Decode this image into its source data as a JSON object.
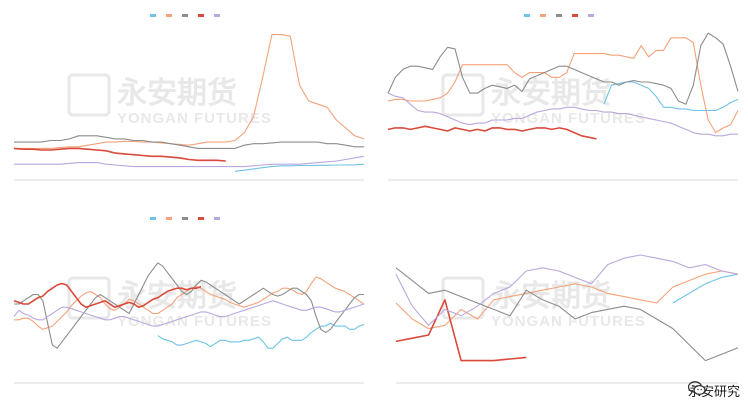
{
  "watermark": {
    "cn": "永安期货",
    "en": "YONGAN FUTURES"
  },
  "brand": {
    "label": "永安研究",
    "icon": "wechat-icon"
  },
  "colors": {
    "blue": "#6ec3e6",
    "orange": "#f5a27a",
    "grey": "#8c8c8c",
    "red": "#d94a3a",
    "purple": "#b9a8dd"
  },
  "chart_data": [
    {
      "type": "line",
      "title": "",
      "ylim": [
        0,
        10
      ],
      "legend": "top-center",
      "grid": false,
      "series": [
        {
          "color": "blue",
          "values": [
            null,
            null,
            null,
            null,
            null,
            null,
            null,
            null,
            null,
            null,
            null,
            null,
            null,
            null,
            null,
            null,
            null,
            null,
            null,
            null,
            null,
            null,
            null,
            null,
            0.55,
            0.62,
            0.7,
            0.78,
            0.85,
            0.9,
            0.9,
            0.92,
            0.92,
            0.93,
            0.93,
            0.95,
            0.95,
            0.96,
            1.0
          ]
        },
        {
          "color": "orange",
          "values": [
            2.0,
            2.0,
            2.0,
            2.0,
            2.0,
            2.05,
            2.1,
            2.1,
            2.2,
            2.3,
            2.4,
            2.4,
            2.45,
            2.45,
            2.4,
            2.4,
            2.35,
            2.3,
            2.25,
            2.2,
            2.3,
            2.4,
            2.4,
            2.4,
            2.5,
            3.0,
            4.0,
            6.5,
            9.2,
            9.2,
            9.1,
            6.0,
            5.0,
            4.8,
            4.6,
            3.8,
            3.3,
            2.8,
            2.6
          ]
        },
        {
          "color": "grey",
          "values": [
            2.4,
            2.4,
            2.4,
            2.4,
            2.5,
            2.5,
            2.6,
            2.8,
            2.8,
            2.8,
            2.7,
            2.6,
            2.6,
            2.5,
            2.5,
            2.4,
            2.4,
            2.3,
            2.2,
            2.1,
            2.0,
            2.0,
            2.0,
            2.0,
            2.0,
            2.2,
            2.3,
            2.3,
            2.35,
            2.4,
            2.4,
            2.4,
            2.4,
            2.4,
            2.3,
            2.3,
            2.2,
            2.1,
            2.1
          ]
        },
        {
          "color": "red",
          "values": [
            2.0,
            1.95,
            1.95,
            1.9,
            1.9,
            1.95,
            2.0,
            2.0,
            1.95,
            1.9,
            1.85,
            1.7,
            1.65,
            1.6,
            1.55,
            1.5,
            1.5,
            1.45,
            1.4,
            1.3,
            1.25,
            1.25,
            1.25,
            1.2,
            null,
            null,
            null,
            null,
            null,
            null,
            null,
            null,
            null,
            null,
            null,
            null,
            null,
            null,
            null
          ]
        },
        {
          "color": "purple",
          "values": [
            1.0,
            1.0,
            1.0,
            1.0,
            1.0,
            1.0,
            1.05,
            1.1,
            1.1,
            1.1,
            1.0,
            0.95,
            0.9,
            0.85,
            0.85,
            0.85,
            0.85,
            0.85,
            0.85,
            0.85,
            0.85,
            0.85,
            0.85,
            0.85,
            0.85,
            0.85,
            0.9,
            0.95,
            1.0,
            1.0,
            1.0,
            1.0,
            1.05,
            1.1,
            1.15,
            1.2,
            1.3,
            1.4,
            1.5
          ]
        }
      ]
    },
    {
      "type": "line",
      "title": "",
      "ylim": [
        0,
        10
      ],
      "legend": "top-center",
      "grid": false,
      "series": [
        {
          "color": "blue",
          "values": [
            null,
            null,
            null,
            null,
            null,
            null,
            null,
            null,
            null,
            null,
            null,
            null,
            null,
            null,
            null,
            null,
            null,
            null,
            null,
            null,
            null,
            null,
            null,
            null,
            null,
            null,
            null,
            null,
            null,
            4.8,
            6.0,
            6.1,
            6.2,
            6.2,
            6.0,
            5.8,
            5.3,
            4.6,
            4.6,
            4.5,
            4.5,
            4.4,
            4.4,
            4.4,
            4.4,
            4.6,
            4.9,
            5.1
          ]
        },
        {
          "color": "orange",
          "values": [
            5.0,
            5.1,
            5.1,
            5.0,
            5.0,
            5.0,
            5.1,
            5.2,
            5.5,
            6.2,
            7.3,
            7.3,
            7.3,
            7.3,
            7.3,
            7.3,
            7.3,
            6.8,
            6.5,
            6.8,
            6.8,
            6.8,
            6.5,
            6.5,
            6.8,
            8.0,
            8.0,
            8.0,
            8.0,
            8.0,
            7.9,
            7.9,
            7.8,
            7.7,
            8.5,
            7.8,
            8.2,
            8.2,
            9.0,
            9.0,
            9.0,
            8.7,
            6.0,
            3.8,
            3.0,
            3.3,
            3.5,
            4.4
          ]
        },
        {
          "color": "grey",
          "values": [
            5.5,
            6.5,
            7.0,
            7.2,
            7.2,
            7.1,
            7.0,
            7.8,
            8.4,
            8.3,
            6.5,
            5.5,
            5.5,
            5.8,
            6.0,
            5.9,
            5.8,
            6.0,
            5.6,
            6.4,
            6.6,
            6.8,
            7.0,
            7.2,
            7.2,
            7.0,
            6.8,
            6.6,
            6.4,
            6.2,
            6.2,
            6.0,
            6.2,
            6.3,
            6.2,
            6.2,
            6.1,
            6.0,
            5.8,
            5.0,
            4.8,
            6.0,
            8.5,
            9.3,
            9.0,
            8.6,
            7.2,
            5.6
          ]
        },
        {
          "color": "red",
          "values": [
            3.2,
            3.3,
            3.3,
            3.2,
            3.3,
            3.4,
            3.3,
            3.2,
            3.1,
            3.3,
            3.2,
            3.1,
            3.2,
            3.1,
            3.3,
            3.3,
            3.2,
            3.2,
            3.1,
            3.2,
            3.3,
            3.3,
            3.2,
            3.3,
            3.2,
            3.0,
            2.8,
            2.7,
            2.6,
            null,
            null,
            null,
            null,
            null,
            null,
            null,
            null,
            null,
            null,
            null,
            null,
            null,
            null,
            null,
            null,
            null,
            null,
            null
          ]
        },
        {
          "color": "purple",
          "values": [
            5.5,
            5.3,
            5.2,
            4.8,
            4.4,
            4.3,
            4.3,
            4.2,
            4.0,
            3.8,
            3.6,
            3.5,
            3.6,
            3.6,
            3.8,
            3.8,
            3.8,
            3.9,
            3.9,
            4.1,
            4.3,
            4.4,
            4.5,
            4.5,
            4.6,
            4.6,
            4.5,
            4.4,
            4.4,
            4.3,
            4.3,
            4.2,
            4.2,
            4.1,
            4.0,
            3.9,
            3.8,
            3.7,
            3.6,
            3.4,
            3.2,
            3.0,
            2.9,
            2.9,
            2.8,
            2.8,
            2.9,
            2.9
          ]
        }
      ]
    },
    {
      "type": "line",
      "title": "",
      "ylim": [
        0,
        10
      ],
      "legend": "top-center",
      "grid": false,
      "series": [
        {
          "color": "blue",
          "values": [
            null,
            null,
            null,
            null,
            null,
            null,
            null,
            null,
            null,
            null,
            null,
            null,
            null,
            null,
            null,
            null,
            null,
            null,
            null,
            null,
            null,
            null,
            null,
            null,
            null,
            null,
            null,
            null,
            null,
            null,
            3.0,
            2.8,
            2.7,
            2.6,
            2.4,
            2.4,
            2.5,
            2.6,
            2.7,
            2.6,
            2.5,
            2.3,
            2.5,
            2.7,
            2.7,
            2.6,
            2.6,
            2.6,
            2.7,
            2.7,
            2.8,
            2.9,
            2.6,
            2.2,
            2.2,
            2.5,
            2.8,
            2.9,
            2.7,
            2.7,
            2.7,
            2.9,
            3.2,
            3.4,
            3.6,
            3.6,
            3.8,
            3.6,
            3.6,
            3.6,
            3.4,
            3.4,
            3.6,
            3.7
          ]
        },
        {
          "color": "orange",
          "values": [
            4.0,
            4.0,
            4.1,
            4.1,
            3.9,
            3.6,
            3.4,
            3.5,
            3.6,
            3.9,
            4.2,
            4.5,
            4.9,
            5.2,
            5.5,
            5.7,
            5.8,
            5.6,
            5.4,
            5.0,
            4.7,
            4.6,
            4.8,
            5.0,
            5.3,
            5.2,
            5.0,
            4.8,
            4.6,
            4.4,
            4.4,
            4.6,
            4.8,
            5.0,
            5.4,
            5.6,
            5.8,
            6.0,
            6.1,
            6.0,
            5.8,
            5.6,
            5.5,
            5.4,
            5.3,
            5.1,
            5.0,
            4.9,
            4.8,
            4.9,
            5.0,
            5.1,
            5.3,
            5.5,
            5.7,
            5.8,
            6.0,
            6.0,
            5.9,
            5.7,
            5.6,
            5.8,
            6.3,
            6.7,
            6.6,
            6.4,
            6.2,
            6.0,
            5.9,
            5.8,
            5.6,
            5.4,
            5.2,
            5.0
          ]
        },
        {
          "color": "grey",
          "values": [
            5.0,
            5.0,
            5.2,
            5.4,
            5.6,
            5.6,
            5.2,
            3.8,
            2.4,
            2.2,
            2.6,
            3.0,
            3.4,
            3.8,
            4.2,
            4.6,
            5.0,
            5.4,
            5.6,
            5.4,
            5.2,
            5.0,
            4.8,
            4.6,
            4.4,
            5.0,
            5.6,
            6.2,
            6.8,
            7.2,
            7.6,
            7.4,
            7.0,
            6.6,
            6.2,
            5.8,
            5.6,
            5.8,
            6.2,
            6.5,
            6.4,
            6.2,
            6.0,
            5.8,
            5.6,
            5.4,
            5.2,
            5.0,
            5.2,
            5.4,
            5.6,
            5.8,
            6.0,
            5.8,
            5.6,
            5.5,
            5.6,
            5.8,
            6.0,
            6.0,
            5.8,
            5.6,
            5.2,
            4.2,
            3.4,
            3.2,
            3.4,
            3.8,
            4.2,
            4.6,
            5.0,
            5.4,
            5.6,
            5.6
          ]
        },
        {
          "color": "red",
          "values": [
            5.2,
            5.1,
            5.0,
            5.0,
            5.2,
            5.4,
            5.5,
            5.8,
            6.0,
            6.2,
            6.3,
            6.2,
            5.8,
            5.4,
            5.0,
            4.8,
            4.9,
            5.0,
            5.1,
            5.2,
            5.0,
            4.8,
            4.9,
            5.0,
            5.1,
            5.0,
            4.8,
            4.9,
            5.1,
            5.3,
            5.4,
            5.6,
            5.8,
            5.9,
            6.0,
            6.0,
            5.9,
            6.0,
            6.0,
            6.1,
            null,
            null,
            null,
            null,
            null,
            null,
            null,
            null,
            null,
            null,
            null,
            null,
            null,
            null,
            null,
            null,
            null,
            null,
            null,
            null,
            null,
            null,
            null,
            null,
            null,
            null,
            null,
            null,
            null,
            null,
            null,
            null,
            null,
            null
          ]
        },
        {
          "color": "purple",
          "values": [
            4.2,
            4.6,
            4.4,
            4.3,
            4.1,
            4.0,
            4.0,
            4.2,
            4.4,
            4.6,
            4.8,
            4.8,
            4.7,
            4.6,
            4.5,
            4.4,
            4.3,
            4.2,
            4.1,
            4.0,
            4.0,
            4.1,
            4.2,
            4.2,
            4.1,
            4.0,
            3.9,
            3.8,
            3.7,
            3.6,
            3.6,
            3.7,
            3.8,
            3.9,
            4.0,
            4.1,
            4.2,
            4.3,
            4.4,
            4.5,
            4.5,
            4.4,
            4.3,
            4.2,
            4.2,
            4.3,
            4.4,
            4.5,
            4.6,
            4.7,
            4.8,
            4.9,
            5.0,
            5.1,
            5.2,
            5.1,
            5.0,
            4.9,
            4.8,
            4.7,
            4.6,
            4.6,
            4.7,
            4.8,
            4.8,
            4.7,
            4.6,
            4.5,
            4.5,
            4.6,
            4.7,
            4.8,
            4.9,
            5.0
          ]
        }
      ]
    },
    {
      "type": "line",
      "title": "",
      "ylim": [
        0,
        10
      ],
      "legend": "none",
      "grid": false,
      "series": [
        {
          "color": "blue",
          "values": [
            null,
            null,
            null,
            null,
            null,
            null,
            null,
            null,
            null,
            null,
            null,
            null,
            null,
            null,
            null,
            null,
            null,
            5.0,
            5.6,
            6.2,
            6.6,
            6.8
          ]
        },
        {
          "color": "orange",
          "values": [
            5.0,
            4.0,
            3.4,
            3.6,
            4.6,
            4.0,
            5.2,
            5.4,
            5.6,
            5.8,
            6.0,
            6.2,
            6.0,
            5.6,
            5.4,
            5.2,
            5.0,
            6.0,
            6.4,
            6.8,
            7.0,
            6.8
          ]
        },
        {
          "color": "grey",
          "values": [
            7.2,
            6.4,
            5.6,
            5.8,
            5.4,
            5.0,
            4.6,
            4.2,
            5.8,
            5.2,
            4.8,
            4.0,
            4.4,
            4.6,
            4.8,
            4.6,
            4.0,
            3.4,
            2.4,
            1.4,
            1.8,
            2.2
          ]
        },
        {
          "color": "red",
          "values": [
            2.6,
            2.8,
            3.0,
            5.2,
            1.4,
            1.4,
            1.4,
            1.5,
            1.6,
            null,
            null,
            null,
            null,
            null,
            null,
            null,
            null,
            null,
            null,
            null,
            null,
            null
          ]
        },
        {
          "color": "purple",
          "values": [
            6.8,
            4.8,
            3.6,
            4.6,
            4.2,
            4.8,
            5.6,
            6.0,
            7.0,
            7.2,
            7.0,
            6.6,
            6.2,
            7.4,
            7.8,
            8.0,
            7.8,
            7.6,
            7.2,
            7.4,
            7.0,
            6.8
          ]
        }
      ]
    }
  ]
}
